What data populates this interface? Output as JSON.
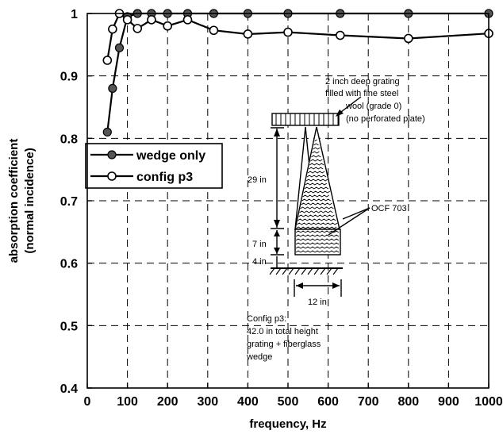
{
  "chart_data": {
    "type": "line",
    "xlabel": "frequency, Hz",
    "ylabel_lines": [
      "absorption coefficient",
      "(normal incidence)"
    ],
    "xlim": [
      0,
      1000
    ],
    "ylim": [
      0.4,
      1.0
    ],
    "x_ticks": [
      0,
      100,
      200,
      300,
      400,
      500,
      600,
      700,
      800,
      900,
      1000
    ],
    "y_ticks": [
      0.4,
      0.5,
      0.6,
      0.7,
      0.8,
      0.9,
      1.0
    ],
    "y_tick_labels": [
      "0.4",
      "0.5",
      "0.6",
      "0.7",
      "0.8",
      "0.9",
      "1"
    ],
    "grid": true,
    "legend_position": "left",
    "series": [
      {
        "name": "wedge only",
        "marker": "filled-circle",
        "x": [
          50,
          63,
          80,
          100,
          125,
          160,
          200,
          250,
          315,
          400,
          500,
          630,
          800,
          1000
        ],
        "y": [
          0.81,
          0.88,
          0.945,
          0.995,
          1.0,
          1.0,
          1.0,
          1.0,
          1.0,
          1.0,
          1.0,
          1.0,
          1.0,
          1.0
        ]
      },
      {
        "name": "config p3",
        "marker": "open-circle",
        "x": [
          50,
          63,
          80,
          100,
          125,
          160,
          200,
          250,
          315,
          400,
          500,
          630,
          800,
          1000
        ],
        "y": [
          0.925,
          0.975,
          1.0,
          0.99,
          0.976,
          0.99,
          0.98,
          0.99,
          0.973,
          0.967,
          0.97,
          0.965,
          0.96,
          0.968
        ]
      }
    ]
  },
  "annotations": {
    "grating_note": [
      "2 inch deep grating",
      "filled with fine steel",
      "wool (grade 0)",
      "(no perforated plate)"
    ],
    "dim_29": "29 in",
    "dim_7": "7 in",
    "dim_4": "4 in",
    "dim_12": "12 in",
    "material": "OCF 703",
    "config_note": [
      "Config  p3:",
      "42.0 in total height",
      "grating + fiberglass",
      "wedge"
    ]
  }
}
